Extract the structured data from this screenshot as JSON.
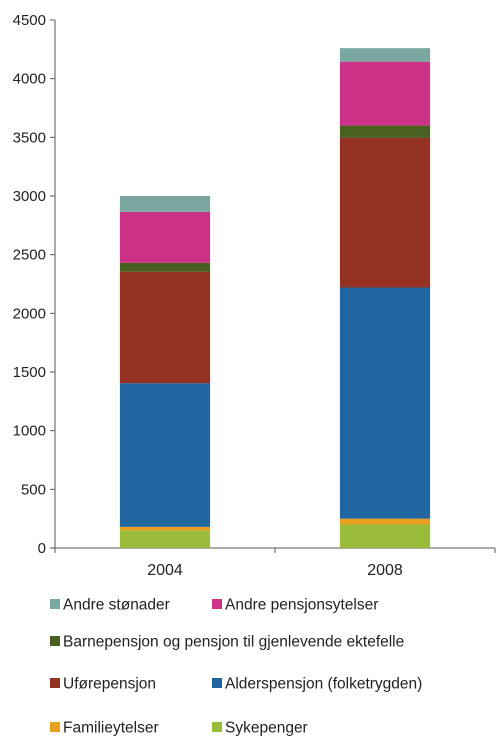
{
  "chart_data": {
    "type": "bar",
    "stacked": true,
    "categories": [
      "2004",
      "2008"
    ],
    "ylim": [
      0,
      4500
    ],
    "yticks": [
      0,
      500,
      1000,
      1500,
      2000,
      2500,
      3000,
      3500,
      4000,
      4500
    ],
    "ytick_labels": [
      "0",
      "500",
      "1000",
      "1500",
      "2000",
      "2500",
      "3000",
      "3500",
      "4000",
      "4500"
    ],
    "grid": false,
    "legend_position": "bottom",
    "series": [
      {
        "name": "Sykepenger",
        "color": "#9BBB3B",
        "values": [
          150,
          200
        ]
      },
      {
        "name": "Familieytelser",
        "color": "#E8A020",
        "values": [
          30,
          50
        ]
      },
      {
        "name": "Alderspensjon (folketrygden)",
        "color": "#2266A0",
        "values": [
          1225,
          1970
        ]
      },
      {
        "name": "Uførepensjon",
        "color": "#953224",
        "values": [
          950,
          1275
        ]
      },
      {
        "name": "Barnepensjon og pensjon til gjenlevende ektefelle",
        "color": "#4A6020",
        "values": [
          75,
          105
        ]
      },
      {
        "name": "Andre pensjonsytelser",
        "color": "#CC3388",
        "values": [
          435,
          545
        ]
      },
      {
        "name": "Andre stønader",
        "color": "#7AA8A0",
        "values": [
          135,
          115
        ]
      }
    ],
    "legend_order": [
      "Andre stønader",
      "Andre pensjonsytelser",
      "Barnepensjon og pensjon til gjenlevende ektefelle",
      "Uførepensjon",
      "Alderspensjon (folketrygden)",
      "Familieytelser",
      "Sykepenger"
    ]
  }
}
